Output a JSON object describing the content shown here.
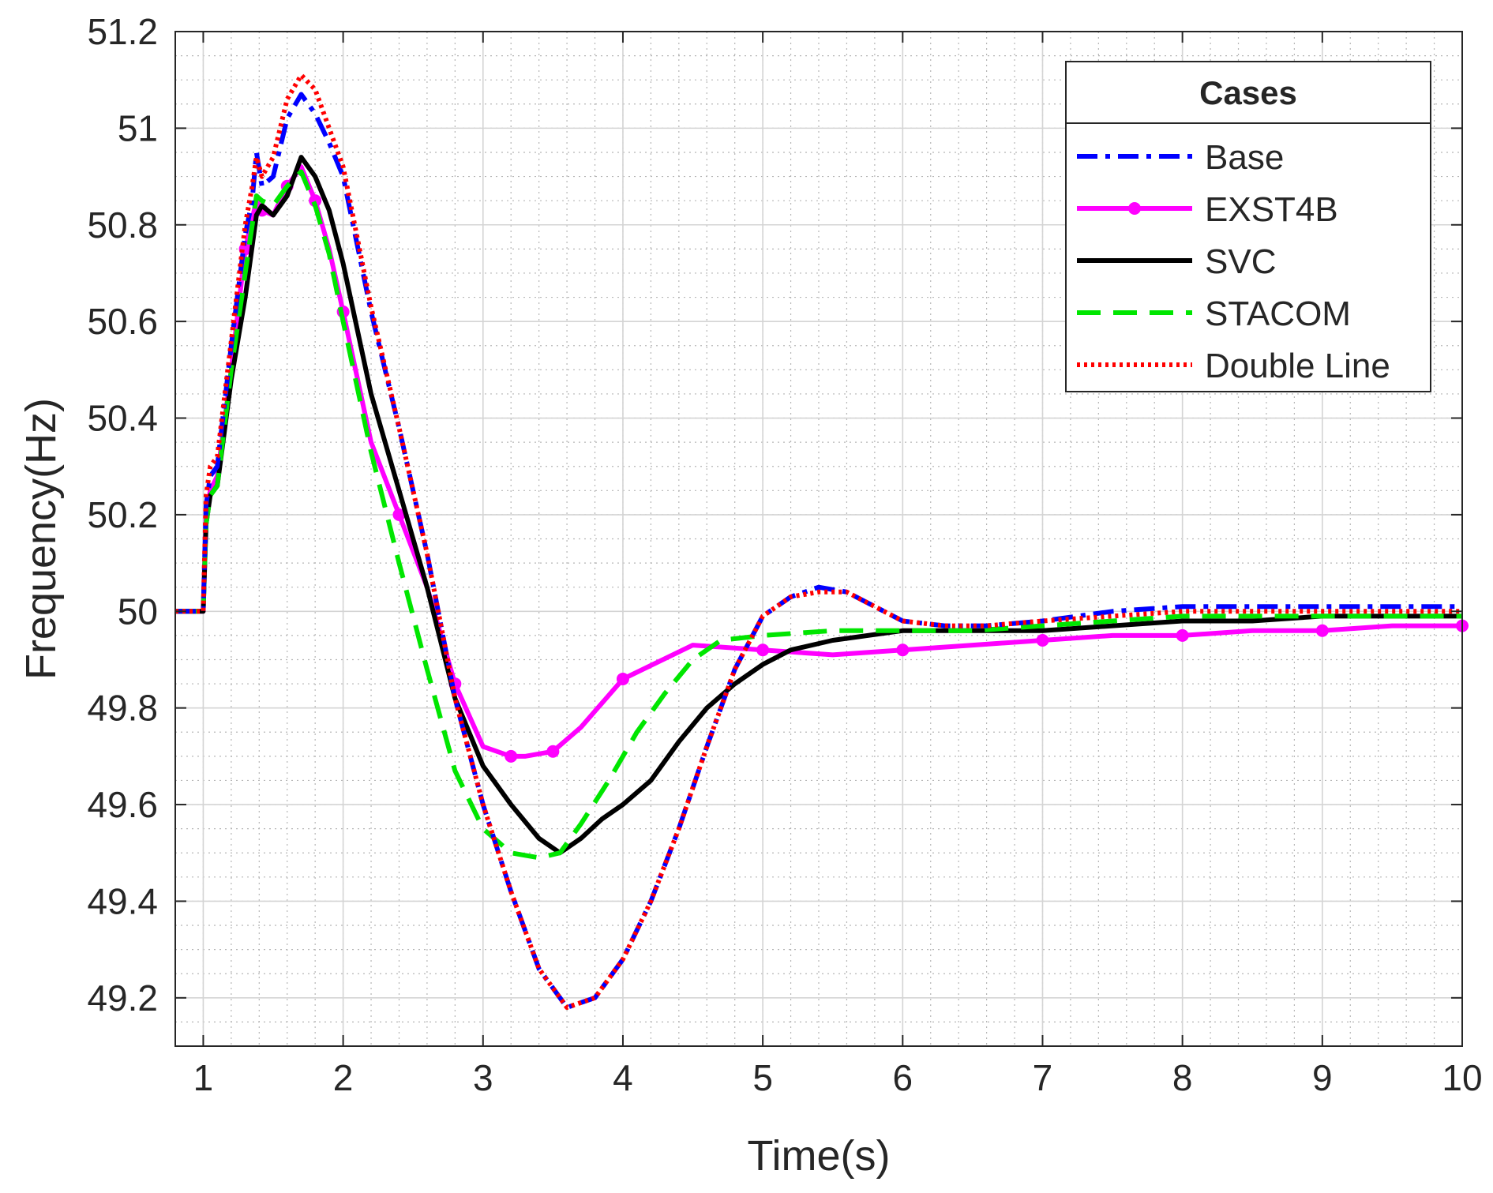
{
  "chart_data": {
    "type": "line",
    "title": "",
    "xlabel": "Time(s)",
    "ylabel": "Frequency(Hz)",
    "xlim": [
      0.8,
      10
    ],
    "ylim": [
      49.1,
      51.2
    ],
    "xticks": [
      1,
      2,
      3,
      4,
      5,
      6,
      7,
      8,
      9,
      10
    ],
    "yticks": [
      49.2,
      49.4,
      49.6,
      49.8,
      50,
      50.2,
      50.4,
      50.6,
      50.8,
      51,
      51.2
    ],
    "xtick_labels": [
      "1",
      "2",
      "3",
      "4",
      "5",
      "6",
      "7",
      "8",
      "9",
      "10"
    ],
    "ytick_labels": [
      "49.2",
      "49.4",
      "49.6",
      "49.8",
      "50",
      "50.2",
      "50.4",
      "50.6",
      "50.8",
      "51",
      "51.2"
    ],
    "grid": true,
    "minor_grid": true,
    "legend": {
      "title": "Cases",
      "position": "top-right"
    },
    "series": [
      {
        "name": "Base",
        "color": "#0000ff",
        "style": "dashdot",
        "x": [
          0.8,
          1.0,
          1.02,
          1.05,
          1.1,
          1.2,
          1.3,
          1.35,
          1.38,
          1.42,
          1.5,
          1.6,
          1.7,
          1.8,
          1.9,
          2.0,
          2.2,
          2.4,
          2.6,
          2.8,
          3.0,
          3.2,
          3.4,
          3.6,
          3.8,
          4.0,
          4.2,
          4.4,
          4.6,
          4.8,
          5.0,
          5.2,
          5.4,
          5.6,
          5.8,
          6.0,
          6.3,
          6.6,
          7.0,
          7.5,
          8.0,
          8.5,
          9.0,
          9.5,
          10.0
        ],
        "y": [
          50.0,
          50.0,
          50.22,
          50.28,
          50.3,
          50.55,
          50.78,
          50.85,
          50.95,
          50.88,
          50.9,
          51.02,
          51.07,
          51.03,
          50.97,
          50.9,
          50.62,
          50.38,
          50.12,
          49.82,
          49.6,
          49.42,
          49.26,
          49.18,
          49.2,
          49.28,
          49.4,
          49.55,
          49.72,
          49.88,
          49.99,
          50.03,
          50.05,
          50.04,
          50.01,
          49.98,
          49.97,
          49.97,
          49.98,
          50.0,
          50.01,
          50.01,
          50.01,
          50.01,
          50.01
        ]
      },
      {
        "name": "EXST4B",
        "color": "#ff00ff",
        "style": "solid-marker",
        "x": [
          0.8,
          1.0,
          1.02,
          1.05,
          1.1,
          1.2,
          1.3,
          1.38,
          1.42,
          1.5,
          1.6,
          1.7,
          1.8,
          1.9,
          2.0,
          2.2,
          2.4,
          2.6,
          2.8,
          3.0,
          3.2,
          3.3,
          3.5,
          3.7,
          4.0,
          4.5,
          5.0,
          5.5,
          6.0,
          6.5,
          7.0,
          7.5,
          8.0,
          8.5,
          9.0,
          9.5,
          10.0
        ],
        "y": [
          50.0,
          50.0,
          50.2,
          50.25,
          50.28,
          50.5,
          50.75,
          50.85,
          50.83,
          50.82,
          50.88,
          50.92,
          50.85,
          50.75,
          50.62,
          50.35,
          50.2,
          50.05,
          49.85,
          49.72,
          49.7,
          49.7,
          49.71,
          49.76,
          49.86,
          49.93,
          49.92,
          49.91,
          49.92,
          49.93,
          49.94,
          49.95,
          49.95,
          49.96,
          49.96,
          49.97,
          49.97
        ]
      },
      {
        "name": "SVC",
        "color": "#000000",
        "style": "solid",
        "x": [
          0.8,
          1.0,
          1.02,
          1.05,
          1.1,
          1.2,
          1.3,
          1.38,
          1.42,
          1.5,
          1.6,
          1.7,
          1.8,
          1.9,
          2.0,
          2.2,
          2.4,
          2.6,
          2.8,
          3.0,
          3.2,
          3.4,
          3.55,
          3.7,
          3.85,
          4.0,
          4.2,
          4.4,
          4.6,
          4.8,
          5.0,
          5.2,
          5.5,
          6.0,
          6.5,
          7.0,
          7.5,
          8.0,
          8.5,
          9.0,
          9.5,
          10.0
        ],
        "y": [
          50.0,
          50.0,
          50.18,
          50.24,
          50.26,
          50.48,
          50.65,
          50.82,
          50.84,
          50.82,
          50.86,
          50.94,
          50.9,
          50.83,
          50.72,
          50.45,
          50.25,
          50.05,
          49.82,
          49.68,
          49.6,
          49.53,
          49.5,
          49.53,
          49.57,
          49.6,
          49.65,
          49.73,
          49.8,
          49.85,
          49.89,
          49.92,
          49.94,
          49.96,
          49.96,
          49.96,
          49.97,
          49.98,
          49.98,
          49.99,
          49.99,
          49.99
        ]
      },
      {
        "name": "STACOM",
        "color": "#00e600",
        "style": "dashed",
        "x": [
          0.8,
          1.0,
          1.02,
          1.05,
          1.1,
          1.2,
          1.3,
          1.38,
          1.42,
          1.5,
          1.6,
          1.7,
          1.8,
          1.9,
          2.0,
          2.2,
          2.4,
          2.6,
          2.8,
          3.0,
          3.2,
          3.4,
          3.55,
          3.7,
          3.9,
          4.1,
          4.3,
          4.5,
          4.7,
          5.0,
          5.5,
          6.0,
          6.5,
          7.0,
          7.5,
          8.0,
          8.5,
          9.0,
          9.5,
          10.0
        ],
        "y": [
          50.0,
          50.0,
          50.18,
          50.24,
          50.26,
          50.5,
          50.7,
          50.86,
          50.85,
          50.84,
          50.88,
          50.91,
          50.84,
          50.74,
          50.6,
          50.33,
          50.1,
          49.88,
          49.67,
          49.55,
          49.5,
          49.49,
          49.5,
          49.56,
          49.65,
          49.75,
          49.83,
          49.9,
          49.94,
          49.95,
          49.96,
          49.96,
          49.96,
          49.97,
          49.98,
          49.99,
          49.99,
          49.99,
          49.99,
          49.99
        ]
      },
      {
        "name": "Double Line",
        "color": "#ff0000",
        "style": "dotted",
        "x": [
          0.8,
          1.0,
          1.02,
          1.05,
          1.1,
          1.2,
          1.3,
          1.35,
          1.38,
          1.42,
          1.5,
          1.6,
          1.7,
          1.8,
          1.9,
          2.0,
          2.2,
          2.4,
          2.6,
          2.8,
          3.0,
          3.2,
          3.4,
          3.6,
          3.8,
          4.0,
          4.2,
          4.4,
          4.6,
          4.8,
          5.0,
          5.2,
          5.4,
          5.6,
          5.8,
          6.0,
          6.3,
          6.6,
          7.0,
          7.5,
          8.0,
          8.5,
          9.0,
          9.5,
          10.0
        ],
        "y": [
          50.0,
          50.0,
          50.24,
          50.3,
          50.32,
          50.56,
          50.8,
          50.88,
          50.94,
          50.9,
          50.94,
          51.06,
          51.11,
          51.08,
          51.0,
          50.92,
          50.63,
          50.38,
          50.12,
          49.82,
          49.6,
          49.42,
          49.26,
          49.18,
          49.2,
          49.28,
          49.4,
          49.55,
          49.72,
          49.88,
          49.99,
          50.03,
          50.04,
          50.04,
          50.01,
          49.98,
          49.97,
          49.97,
          49.98,
          49.99,
          50.0,
          50.0,
          50.0,
          50.0,
          50.0
        ]
      }
    ]
  }
}
